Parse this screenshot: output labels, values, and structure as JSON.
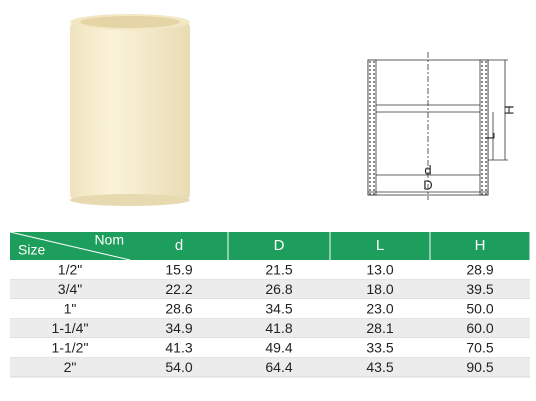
{
  "diagram": {
    "labels": {
      "d": "d",
      "D": "D",
      "L": "L",
      "H": "H"
    }
  },
  "table": {
    "header": {
      "size": "Size",
      "nom": "Nom",
      "columns": [
        "d",
        "D",
        "L",
        "H"
      ]
    },
    "rows": [
      [
        "1/2\"",
        "15.9",
        "21.5",
        "13.0",
        "28.9"
      ],
      [
        "3/4\"",
        "22.2",
        "26.8",
        "18.0",
        "39.5"
      ],
      [
        "1\"",
        "28.6",
        "34.5",
        "23.0",
        "50.0"
      ],
      [
        "1-1/4\"",
        "34.9",
        "41.8",
        "28.1",
        "60.0"
      ],
      [
        "1-1/2\"",
        "41.3",
        "49.4",
        "33.5",
        "70.5"
      ],
      [
        "2\"",
        "54.0",
        "64.4",
        "43.5",
        "90.5"
      ]
    ]
  }
}
